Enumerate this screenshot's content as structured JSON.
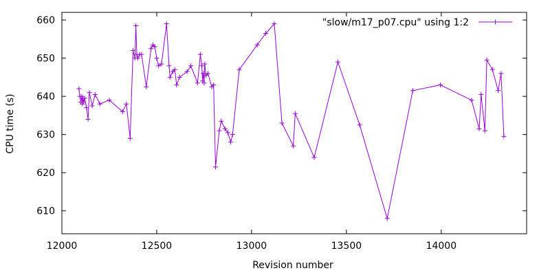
{
  "chart_data": {
    "type": "line",
    "xlabel": "Revision number",
    "ylabel": "CPU time (s)",
    "xlim": [
      12000,
      14450
    ],
    "ylim": [
      604,
      662
    ],
    "xticks": [
      12000,
      12500,
      13000,
      13500,
      14000
    ],
    "yticks": [
      610,
      620,
      630,
      640,
      650,
      660
    ],
    "grid": false,
    "legend_position": "top-right",
    "colors": {
      "series": "#9400d3",
      "axis": "#000000"
    },
    "series": [
      {
        "name": "\"slow/m17_p07.cpu\" using 1:2",
        "marker": "plus",
        "x": [
          12090,
          12095,
          12100,
          12105,
          12108,
          12111,
          12115,
          12120,
          12130,
          12138,
          12145,
          12160,
          12175,
          12200,
          12250,
          12320,
          12340,
          12360,
          12375,
          12385,
          12390,
          12395,
          12400,
          12410,
          12420,
          12445,
          12470,
          12480,
          12490,
          12500,
          12510,
          12525,
          12552,
          12565,
          12570,
          12585,
          12595,
          12605,
          12620,
          12660,
          12680,
          12715,
          12730,
          12738,
          12741,
          12745,
          12750,
          12753,
          12760,
          12770,
          12790,
          12800,
          12810,
          12830,
          12840,
          12860,
          12875,
          12890,
          12900,
          12935,
          13030,
          13075,
          13120,
          13160,
          13220,
          13230,
          13330,
          13455,
          13570,
          13715,
          13850,
          13995,
          14160,
          14200,
          14210,
          14230,
          14240,
          14270,
          14300,
          14315,
          14330
        ],
        "y": [
          642,
          640,
          638.5,
          640,
          638,
          639.5,
          638.5,
          639.5,
          637,
          634,
          641,
          637.5,
          640.5,
          638,
          639,
          636,
          638,
          629,
          652,
          650,
          658.5,
          651,
          650,
          651,
          651,
          642.5,
          652.5,
          653.5,
          653,
          650,
          648,
          648.5,
          659,
          648,
          645,
          646.5,
          647,
          643,
          645,
          646.5,
          648,
          643.5,
          651,
          648,
          644,
          646,
          643.5,
          648.5,
          645.5,
          646,
          642.5,
          643,
          621.5,
          631,
          633.5,
          631.5,
          630.5,
          628,
          630,
          647,
          653.5,
          656.5,
          659,
          633,
          627,
          635.5,
          624,
          649,
          632.5,
          608,
          641.5,
          643,
          639,
          631.5,
          640.5,
          631,
          649.5,
          647,
          641.5,
          646,
          629.5
        ]
      }
    ]
  }
}
